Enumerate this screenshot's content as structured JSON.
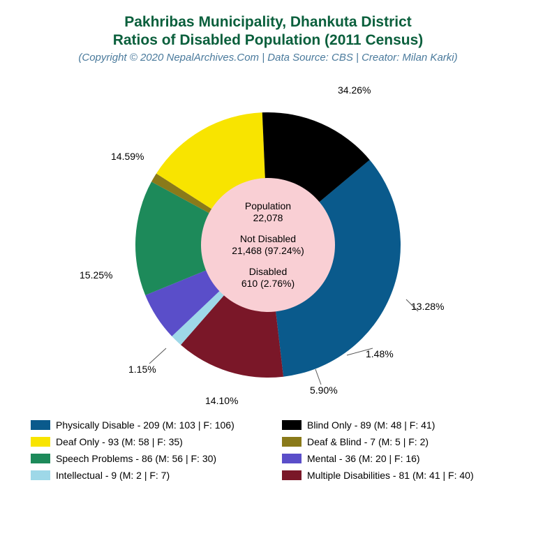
{
  "title": {
    "line1": "Pakhribas Municipality, Dhankuta District",
    "line2": "Ratios of Disabled Population (2011 Census)",
    "subtitle": "(Copyright © 2020 NepalArchives.Com | Data Source: CBS | Creator: Milan Karki)",
    "color": "#0a5f3c",
    "subtitle_color": "#4a7a9c",
    "fontsize_main": 21,
    "fontsize_sub": 15
  },
  "chart": {
    "type": "pie",
    "outer_radius": 190,
    "inner_radius": 96,
    "center_color": "#f9cfd4",
    "background_color": "#ffffff",
    "start_angle_deg": 50,
    "slices": [
      {
        "label": "Physically Disable",
        "pct": 34.26,
        "count": 209,
        "male": 103,
        "female": 106,
        "color": "#0a5a8c"
      },
      {
        "label": "Multiple Disabilities",
        "pct": 13.28,
        "count": 81,
        "male": 41,
        "female": 40,
        "color": "#7a1728"
      },
      {
        "label": "Intellectual",
        "pct": 1.48,
        "count": 9,
        "male": 2,
        "female": 7,
        "color": "#9ed8e8"
      },
      {
        "label": "Mental",
        "pct": 5.9,
        "count": 36,
        "male": 20,
        "female": 16,
        "color": "#5a4ec9"
      },
      {
        "label": "Speech Problems",
        "pct": 14.1,
        "count": 86,
        "male": 56,
        "female": 30,
        "color": "#1d8a5a"
      },
      {
        "label": "Deaf & Blind",
        "pct": 1.15,
        "count": 7,
        "male": 5,
        "female": 2,
        "color": "#8a7a1a"
      },
      {
        "label": "Deaf Only",
        "pct": 15.25,
        "count": 93,
        "male": 58,
        "female": 35,
        "color": "#f8e400"
      },
      {
        "label": "Blind Only",
        "pct": 14.59,
        "count": 89,
        "male": 48,
        "female": 41,
        "color": "#000000"
      }
    ],
    "center_text": {
      "population_label": "Population",
      "population_value": "22,078",
      "not_disabled_label": "Not Disabled",
      "not_disabled_value": "21,468 (97.24%)",
      "disabled_label": "Disabled",
      "disabled_value": "610 (2.76%)"
    },
    "label_fontsize": 14
  },
  "legend": {
    "fontsize": 14,
    "swatch_w": 28,
    "swatch_h": 14,
    "order": [
      [
        "Physically Disable",
        "Blind Only"
      ],
      [
        "Deaf Only",
        "Deaf & Blind"
      ],
      [
        "Speech Problems",
        "Mental"
      ],
      [
        "Intellectual",
        "Multiple Disabilities"
      ]
    ]
  }
}
